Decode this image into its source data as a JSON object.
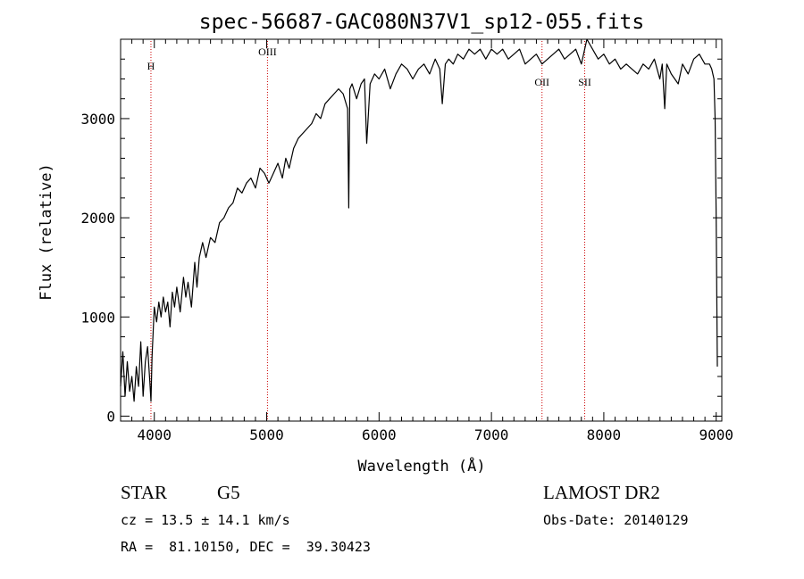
{
  "chart_data": {
    "type": "line",
    "title": "spec-56687-GAC080N37V1_sp12-055.fits",
    "xlabel": "Wavelength (Å)",
    "ylabel": "Flux (relative)",
    "xlim": [
      3700,
      9050
    ],
    "ylim": [
      -50,
      3800
    ],
    "xticks": [
      4000,
      5000,
      6000,
      7000,
      8000,
      9000
    ],
    "xtick_labels": [
      "4000",
      "5000",
      "6000",
      "7000",
      "8000",
      "9000"
    ],
    "yticks": [
      0,
      1000,
      2000,
      3000
    ],
    "ytick_labels": [
      "0",
      "1000",
      "2000",
      "3000"
    ],
    "grid": false,
    "series": [
      {
        "x": [
          3700,
          3720,
          3740,
          3760,
          3780,
          3800,
          3820,
          3840,
          3860,
          3880,
          3900,
          3920,
          3940,
          3960,
          3970,
          3980,
          4000,
          4020,
          4040,
          4060,
          4080,
          4100,
          4120,
          4140,
          4160,
          4180,
          4200,
          4230,
          4260,
          4280,
          4300,
          4330,
          4360,
          4380,
          4400,
          4430,
          4460,
          4500,
          4540,
          4580,
          4620,
          4660,
          4700,
          4740,
          4780,
          4820,
          4860,
          4900,
          4940,
          4980,
          5020,
          5060,
          5100,
          5140,
          5170,
          5200,
          5240,
          5280,
          5320,
          5360,
          5400,
          5440,
          5480,
          5520,
          5560,
          5600,
          5640,
          5680,
          5720,
          5730,
          5740,
          5760,
          5800,
          5840,
          5870,
          5890,
          5920,
          5960,
          6000,
          6050,
          6100,
          6150,
          6200,
          6250,
          6300,
          6350,
          6400,
          6450,
          6500,
          6540,
          6563,
          6590,
          6620,
          6660,
          6700,
          6750,
          6800,
          6850,
          6900,
          6950,
          7000,
          7050,
          7100,
          7150,
          7200,
          7250,
          7300,
          7350,
          7400,
          7450,
          7500,
          7550,
          7600,
          7650,
          7700,
          7750,
          7800,
          7850,
          7900,
          7950,
          8000,
          8050,
          8100,
          8150,
          8200,
          8250,
          8300,
          8350,
          8400,
          8450,
          8498,
          8520,
          8542,
          8560,
          8600,
          8662,
          8700,
          8750,
          8800,
          8850,
          8900,
          8940,
          8960,
          8980,
          8990,
          9000,
          9010
        ],
        "y": [
          300,
          650,
          200,
          550,
          250,
          400,
          150,
          500,
          300,
          750,
          200,
          550,
          700,
          350,
          150,
          600,
          1100,
          950,
          1150,
          1000,
          1200,
          1050,
          1150,
          900,
          1250,
          1100,
          1300,
          1050,
          1400,
          1200,
          1350,
          1100,
          1550,
          1300,
          1600,
          1750,
          1600,
          1800,
          1750,
          1950,
          2000,
          2100,
          2150,
          2300,
          2250,
          2350,
          2400,
          2300,
          2500,
          2450,
          2350,
          2450,
          2550,
          2400,
          2600,
          2500,
          2700,
          2800,
          2850,
          2900,
          2950,
          3050,
          3000,
          3150,
          3200,
          3250,
          3300,
          3250,
          3100,
          2100,
          3300,
          3350,
          3200,
          3350,
          3400,
          2750,
          3350,
          3450,
          3400,
          3500,
          3300,
          3450,
          3550,
          3500,
          3400,
          3500,
          3550,
          3450,
          3600,
          3500,
          3150,
          3550,
          3600,
          3550,
          3650,
          3600,
          3700,
          3650,
          3700,
          3600,
          3700,
          3650,
          3700,
          3600,
          3650,
          3700,
          3550,
          3600,
          3650,
          3550,
          3600,
          3650,
          3700,
          3600,
          3650,
          3700,
          3550,
          3800,
          3700,
          3600,
          3650,
          3550,
          3600,
          3500,
          3550,
          3500,
          3450,
          3550,
          3500,
          3600,
          3400,
          3550,
          3100,
          3550,
          3450,
          3350,
          3550,
          3450,
          3600,
          3650,
          3550,
          3550,
          3500,
          3400,
          3000,
          2000,
          500
        ]
      }
    ],
    "line_markers": [
      {
        "label": "H",
        "x": 3970
      },
      {
        "label": "OIII",
        "x": 5007
      },
      {
        "label": "OII",
        "x": 7450
      },
      {
        "label": "SII",
        "x": 7830
      }
    ]
  },
  "info": {
    "object_class": "STAR",
    "subclass": "G5",
    "survey": "LAMOST DR2",
    "redshift": "cz = 13.5 ± 14.1 km/s",
    "obs_date": "Obs-Date: 20140129",
    "coords": "RA =  81.10150, DEC =  39.30423"
  },
  "colors": {
    "spectrum": "#000000",
    "marker_line": "#cc0000",
    "axes": "#000000"
  }
}
